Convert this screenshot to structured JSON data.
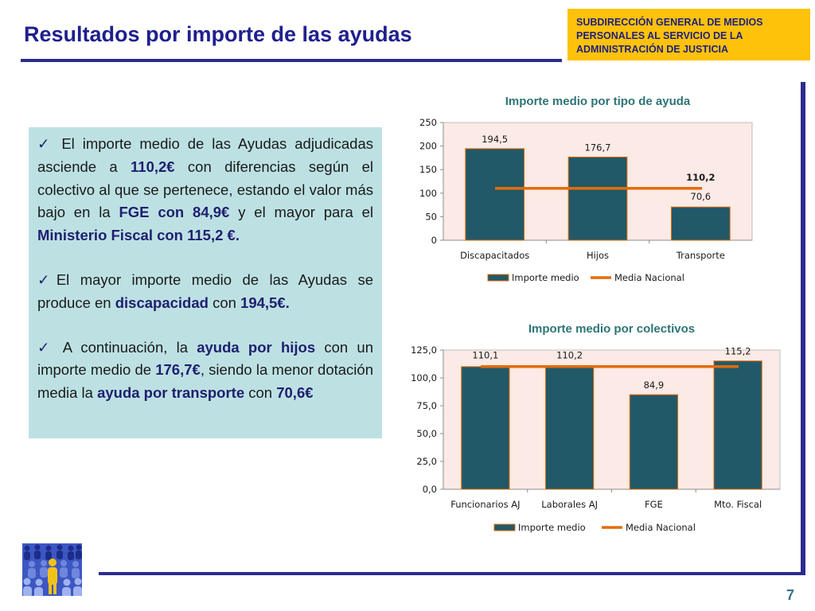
{
  "header": {
    "title": "Resultados por importe de las ayudas",
    "org_lines": [
      "SUBDIRECCIÓN GENERAL DE MEDIOS",
      "PERSONALES AL SERVICIO DE LA",
      "ADMINISTRACIÓN DE JUSTICIA"
    ]
  },
  "summary": {
    "p1": {
      "t1": " El importe medio de las Ayudas adjudicadas asciende a ",
      "b1": "110,2€",
      "t2": " con diferencias según el colectivo al que se pertenece, estando el valor más bajo en la ",
      "b2": "FGE con 84,9€",
      "t3": " y el mayor para el ",
      "b3": "Ministerio Fiscal con 115,2 €."
    },
    "p2": {
      "t1": "El mayor importe medio de las Ayudas se produce en ",
      "b1": "discapacidad",
      "t2": " con ",
      "b2": "194,5€."
    },
    "p3": {
      "t1": " A continuación, la ",
      "b1": "ayuda por hijos",
      "t2": " con un importe medio de ",
      "b2": "176,7€",
      "t3": ", siendo la menor dotación media la ",
      "b3": "ayuda por transporte",
      "t4": " con ",
      "b4": "70,6€"
    }
  },
  "footer": {
    "page_number": "7"
  },
  "colors": {
    "bar": "#215968",
    "bar_stroke": "#e46c0a",
    "average_line": "#e46c0a",
    "plot_background": "#fbeae5",
    "chart_title": "#2e7476",
    "title": "#1f1f8f",
    "org_box": "#fec20b",
    "text_box": "#bde1e3"
  },
  "chart_data": [
    {
      "type": "bar",
      "title": "Importe medio por tipo de ayuda",
      "categories": [
        "Discapacitados",
        "Hijos",
        "Transporte"
      ],
      "series": [
        {
          "name": "Importe medio",
          "values": [
            194.5,
            176.7,
            70.6
          ],
          "labels": [
            "194,5",
            "176,7",
            "70,6"
          ]
        }
      ],
      "average": {
        "name": "Media Nacional",
        "value": 110.2,
        "label": "110,2"
      },
      "ylim": [
        0,
        250
      ],
      "yticks": [
        "0",
        "50",
        "100",
        "150",
        "200",
        "250"
      ],
      "grid": false,
      "legend": "bottom"
    },
    {
      "type": "bar",
      "title": "Importe medio por colectivos",
      "categories": [
        "Funcionarios AJ",
        "Laborales AJ",
        "FGE",
        "Mto. Fiscal"
      ],
      "series": [
        {
          "name": "Importe medio",
          "values": [
            110.1,
            110.2,
            84.9,
            115.2
          ],
          "labels": [
            "110,1",
            "110,2",
            "84,9",
            "115,2"
          ]
        }
      ],
      "average": {
        "name": "Media Nacional",
        "value": 110.2
      },
      "ylim": [
        0,
        125
      ],
      "yticks": [
        "0,0",
        "25,0",
        "50,0",
        "75,0",
        "100,0",
        "125,0"
      ],
      "grid": false,
      "legend": "bottom"
    }
  ]
}
